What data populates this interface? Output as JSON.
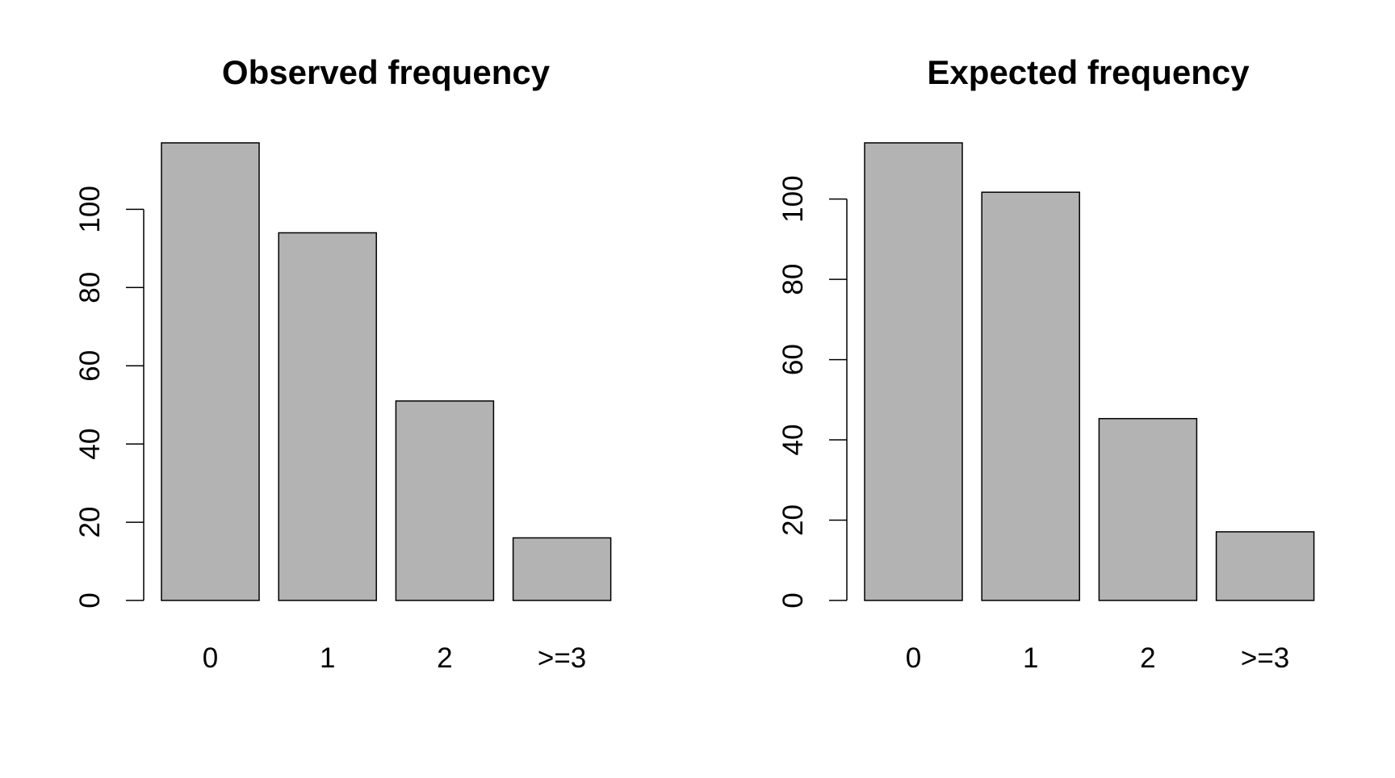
{
  "colors": {
    "bar_fill": "#b3b3b3",
    "bar_stroke": "#000000",
    "background": "#ffffff"
  },
  "chart_data": [
    {
      "type": "bar",
      "title": "Observed frequency",
      "categories": [
        "0",
        "1",
        "2",
        ">=3"
      ],
      "values": [
        117,
        94,
        51,
        16
      ],
      "xlabel": "",
      "ylabel": "",
      "ylim": [
        0,
        117
      ],
      "yticks": [
        0,
        20,
        40,
        60,
        80,
        100
      ],
      "grid": false,
      "legend": "none"
    },
    {
      "type": "bar",
      "title": "Expected frequency",
      "categories": [
        "0",
        "1",
        "2",
        ">=3"
      ],
      "values": [
        114,
        101.7,
        45.3,
        17.1
      ],
      "xlabel": "",
      "ylabel": "",
      "ylim": [
        0,
        114
      ],
      "yticks": [
        0,
        20,
        40,
        60,
        80,
        100
      ],
      "grid": false,
      "legend": "none"
    }
  ]
}
